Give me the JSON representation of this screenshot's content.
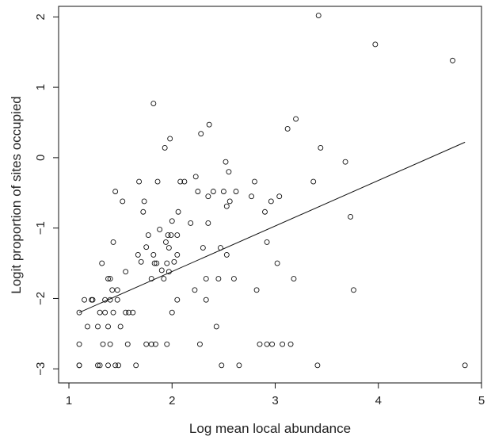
{
  "chart_data": {
    "type": "scatter",
    "xlabel": "Log mean local abundance",
    "ylabel": "Logit proportion of sites occupied",
    "xlim": [
      0.9,
      5.0
    ],
    "ylim": [
      -3.2,
      2.15
    ],
    "xticks": [
      1,
      2,
      3,
      4,
      5
    ],
    "yticks": [
      -3,
      -2,
      -1,
      0,
      1,
      2
    ],
    "grid": false,
    "legend": "none",
    "fit_line": {
      "x": [
        1.1,
        4.84
      ],
      "y": [
        -2.2,
        0.22
      ]
    },
    "points": [
      [
        1.1,
        -2.95
      ],
      [
        1.1,
        -2.95
      ],
      [
        1.1,
        -2.65
      ],
      [
        1.1,
        -2.2
      ],
      [
        1.15,
        -2.02
      ],
      [
        1.18,
        -2.4
      ],
      [
        1.22,
        -2.02
      ],
      [
        1.23,
        -2.02
      ],
      [
        1.28,
        -2.4
      ],
      [
        1.28,
        -2.95
      ],
      [
        1.3,
        -2.95
      ],
      [
        1.3,
        -2.2
      ],
      [
        1.32,
        -1.5
      ],
      [
        1.33,
        -2.65
      ],
      [
        1.35,
        -2.2
      ],
      [
        1.35,
        -2.02
      ],
      [
        1.38,
        -2.95
      ],
      [
        1.38,
        -1.72
      ],
      [
        1.38,
        -2.4
      ],
      [
        1.4,
        -2.02
      ],
      [
        1.4,
        -1.72
      ],
      [
        1.4,
        -2.65
      ],
      [
        1.42,
        -1.88
      ],
      [
        1.43,
        -1.2
      ],
      [
        1.43,
        -2.2
      ],
      [
        1.45,
        -2.95
      ],
      [
        1.45,
        -0.48
      ],
      [
        1.47,
        -2.02
      ],
      [
        1.47,
        -1.88
      ],
      [
        1.48,
        -2.95
      ],
      [
        1.5,
        -2.4
      ],
      [
        1.52,
        -0.62
      ],
      [
        1.55,
        -2.2
      ],
      [
        1.55,
        -1.62
      ],
      [
        1.57,
        -2.65
      ],
      [
        1.58,
        -2.2
      ],
      [
        1.62,
        -2.2
      ],
      [
        1.65,
        -2.95
      ],
      [
        1.67,
        -1.38
      ],
      [
        1.68,
        -0.34
      ],
      [
        1.7,
        -1.48
      ],
      [
        1.72,
        -0.77
      ],
      [
        1.73,
        -0.62
      ],
      [
        1.75,
        -2.65
      ],
      [
        1.75,
        -1.27
      ],
      [
        1.77,
        -1.1
      ],
      [
        1.8,
        -2.65
      ],
      [
        1.8,
        -1.72
      ],
      [
        1.82,
        -1.38
      ],
      [
        1.82,
        0.77
      ],
      [
        1.83,
        -1.5
      ],
      [
        1.84,
        -2.65
      ],
      [
        1.85,
        -1.5
      ],
      [
        1.86,
        -0.34
      ],
      [
        1.88,
        -1.02
      ],
      [
        1.9,
        -1.6
      ],
      [
        1.92,
        -1.72
      ],
      [
        1.93,
        0.14
      ],
      [
        1.94,
        -1.2
      ],
      [
        1.95,
        -2.65
      ],
      [
        1.95,
        -1.5
      ],
      [
        1.96,
        -1.1
      ],
      [
        1.97,
        -1.28
      ],
      [
        1.97,
        -1.62
      ],
      [
        1.98,
        0.27
      ],
      [
        1.99,
        -1.1
      ],
      [
        2.0,
        -0.9
      ],
      [
        2.0,
        -2.2
      ],
      [
        2.02,
        -1.48
      ],
      [
        2.05,
        -2.02
      ],
      [
        2.05,
        -1.38
      ],
      [
        2.05,
        -1.1
      ],
      [
        2.06,
        -0.77
      ],
      [
        2.08,
        -0.34
      ],
      [
        2.12,
        -0.34
      ],
      [
        2.18,
        -0.93
      ],
      [
        2.22,
        -1.88
      ],
      [
        2.23,
        -0.27
      ],
      [
        2.25,
        -0.48
      ],
      [
        2.27,
        -2.65
      ],
      [
        2.28,
        0.34
      ],
      [
        2.3,
        -1.28
      ],
      [
        2.33,
        -1.72
      ],
      [
        2.33,
        -2.02
      ],
      [
        2.35,
        -0.93
      ],
      [
        2.35,
        -0.55
      ],
      [
        2.36,
        0.47
      ],
      [
        2.4,
        -0.48
      ],
      [
        2.43,
        -2.4
      ],
      [
        2.45,
        -1.72
      ],
      [
        2.47,
        -1.28
      ],
      [
        2.48,
        -2.95
      ],
      [
        2.5,
        -0.48
      ],
      [
        2.52,
        -0.06
      ],
      [
        2.53,
        -1.38
      ],
      [
        2.53,
        -0.69
      ],
      [
        2.55,
        -0.2
      ],
      [
        2.56,
        -0.62
      ],
      [
        2.6,
        -1.72
      ],
      [
        2.62,
        -0.48
      ],
      [
        2.65,
        -2.95
      ],
      [
        2.77,
        -0.55
      ],
      [
        2.8,
        -0.34
      ],
      [
        2.82,
        -1.88
      ],
      [
        2.85,
        -2.65
      ],
      [
        2.9,
        -0.77
      ],
      [
        2.92,
        -1.2
      ],
      [
        2.92,
        -2.65
      ],
      [
        2.97,
        -2.65
      ],
      [
        2.96,
        -0.62
      ],
      [
        3.02,
        -1.5
      ],
      [
        3.04,
        -0.55
      ],
      [
        3.07,
        -2.65
      ],
      [
        3.12,
        0.41
      ],
      [
        3.15,
        -2.65
      ],
      [
        3.18,
        -1.72
      ],
      [
        3.2,
        0.55
      ],
      [
        3.37,
        -0.34
      ],
      [
        3.41,
        -2.95
      ],
      [
        3.42,
        2.02
      ],
      [
        3.44,
        0.14
      ],
      [
        3.68,
        -0.06
      ],
      [
        3.73,
        -0.84
      ],
      [
        3.76,
        -1.88
      ],
      [
        3.97,
        1.61
      ],
      [
        4.72,
        1.38
      ],
      [
        4.84,
        -2.95
      ]
    ]
  }
}
